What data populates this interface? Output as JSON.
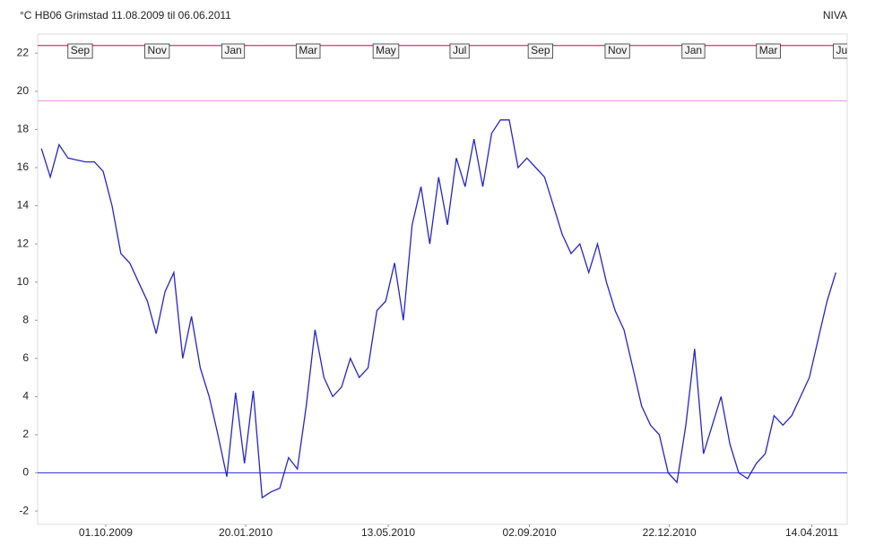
{
  "chart_data": {
    "type": "line",
    "title": "°C HB06 Grimstad 11.08.2009 til 06.06.2011",
    "source": "NIVA",
    "x": [
      "2009-08-11",
      "2009-08-18",
      "2009-08-25",
      "2009-09-01",
      "2009-09-08",
      "2009-09-15",
      "2009-09-22",
      "2009-09-29",
      "2009-10-06",
      "2009-10-13",
      "2009-10-20",
      "2009-10-27",
      "2009-11-03",
      "2009-11-10",
      "2009-11-17",
      "2009-11-24",
      "2009-12-01",
      "2009-12-08",
      "2009-12-15",
      "2009-12-22",
      "2009-12-29",
      "2010-01-05",
      "2010-01-12",
      "2010-01-19",
      "2010-01-26",
      "2010-02-02",
      "2010-02-09",
      "2010-02-16",
      "2010-02-23",
      "2010-03-02",
      "2010-03-09",
      "2010-03-16",
      "2010-03-23",
      "2010-03-30",
      "2010-04-06",
      "2010-04-13",
      "2010-04-20",
      "2010-04-27",
      "2010-05-04",
      "2010-05-11",
      "2010-05-18",
      "2010-05-25",
      "2010-06-01",
      "2010-06-08",
      "2010-06-15",
      "2010-06-22",
      "2010-06-29",
      "2010-07-06",
      "2010-07-13",
      "2010-07-20",
      "2010-07-27",
      "2010-08-03",
      "2010-08-10",
      "2010-08-17",
      "2010-08-24",
      "2010-08-31",
      "2010-09-07",
      "2010-09-14",
      "2010-09-21",
      "2010-09-28",
      "2010-10-05",
      "2010-10-12",
      "2010-10-19",
      "2010-10-26",
      "2010-11-02",
      "2010-11-09",
      "2010-11-16",
      "2010-11-23",
      "2010-11-30",
      "2010-12-07",
      "2010-12-14",
      "2010-12-21",
      "2010-12-28",
      "2011-01-04",
      "2011-01-11",
      "2011-01-18",
      "2011-01-25",
      "2011-02-01",
      "2011-02-08",
      "2011-02-15",
      "2011-02-22",
      "2011-03-01",
      "2011-03-08",
      "2011-03-15",
      "2011-03-22",
      "2011-03-29",
      "2011-04-05",
      "2011-04-12",
      "2011-04-19",
      "2011-04-26",
      "2011-05-03"
    ],
    "series": [
      {
        "color": "#2424d0",
        "values": [
          17.0,
          15.5,
          17.2,
          16.5,
          16.4,
          16.3,
          16.3,
          15.8,
          14.0,
          11.5,
          11.0,
          10.0,
          9.0,
          7.3,
          9.5,
          10.5,
          6.0,
          8.2,
          5.5,
          4.0,
          2.0,
          -0.2,
          4.2,
          0.5,
          4.3,
          -1.3,
          -1.0,
          -0.8,
          0.8,
          0.2,
          3.5,
          7.5,
          5.0,
          4.0,
          4.5,
          6.0,
          5.0,
          5.5,
          8.5,
          9.0,
          11.0,
          8.0,
          13.0,
          15.0,
          12.0,
          15.5,
          13.0,
          16.5,
          15.0,
          17.5,
          15.0,
          17.8,
          18.5,
          18.5,
          16.0,
          16.5,
          16.0,
          15.5,
          14.0,
          12.5,
          11.5,
          12.0,
          10.5,
          12.0,
          10.0,
          8.5,
          7.5,
          5.5,
          3.5,
          2.5,
          2.0,
          0.0,
          -0.5,
          2.5,
          6.5,
          1.0,
          2.5,
          4.0,
          1.5,
          0.0,
          -0.3,
          0.5,
          1.0,
          3.0,
          2.5,
          3.0,
          4.0,
          5.0,
          7.0,
          9.0,
          10.5
        ]
      }
    ],
    "xlim": [
      "2009-08-08",
      "2011-05-12"
    ],
    "xticks": [
      {
        "value": "2009-10-01",
        "label": "01.10.2009"
      },
      {
        "value": "2010-01-20",
        "label": "20.01.2010"
      },
      {
        "value": "2010-05-13",
        "label": "13.05.2010"
      },
      {
        "value": "2010-09-02",
        "label": "02.09.2010"
      },
      {
        "value": "2010-12-22",
        "label": "22.12.2010"
      },
      {
        "value": "2011-04-14",
        "label": "14.04.2011"
      }
    ],
    "month_markers": [
      {
        "value": "2009-09-01",
        "label": "Sep"
      },
      {
        "value": "2009-11-01",
        "label": "Nov"
      },
      {
        "value": "2010-01-01",
        "label": "Jan"
      },
      {
        "value": "2010-03-01",
        "label": "Mar"
      },
      {
        "value": "2010-05-01",
        "label": "May"
      },
      {
        "value": "2010-07-01",
        "label": "Jul"
      },
      {
        "value": "2010-09-01",
        "label": "Sep"
      },
      {
        "value": "2010-11-01",
        "label": "Nov"
      },
      {
        "value": "2011-01-01",
        "label": "Jan"
      },
      {
        "value": "2011-03-01",
        "label": "Mar"
      },
      {
        "value": "2011-05-01",
        "label": "Ju"
      }
    ],
    "ylim": [
      -2.7,
      23
    ],
    "yticks": [
      -2,
      0,
      2,
      4,
      6,
      8,
      10,
      12,
      14,
      16,
      18,
      20,
      22
    ],
    "ref_lines": [
      {
        "value": 22.4,
        "color": "#e0306a"
      },
      {
        "value": 19.5,
        "color": "#f0a0e8"
      },
      {
        "value": 0,
        "color": "#5050d0"
      }
    ]
  }
}
